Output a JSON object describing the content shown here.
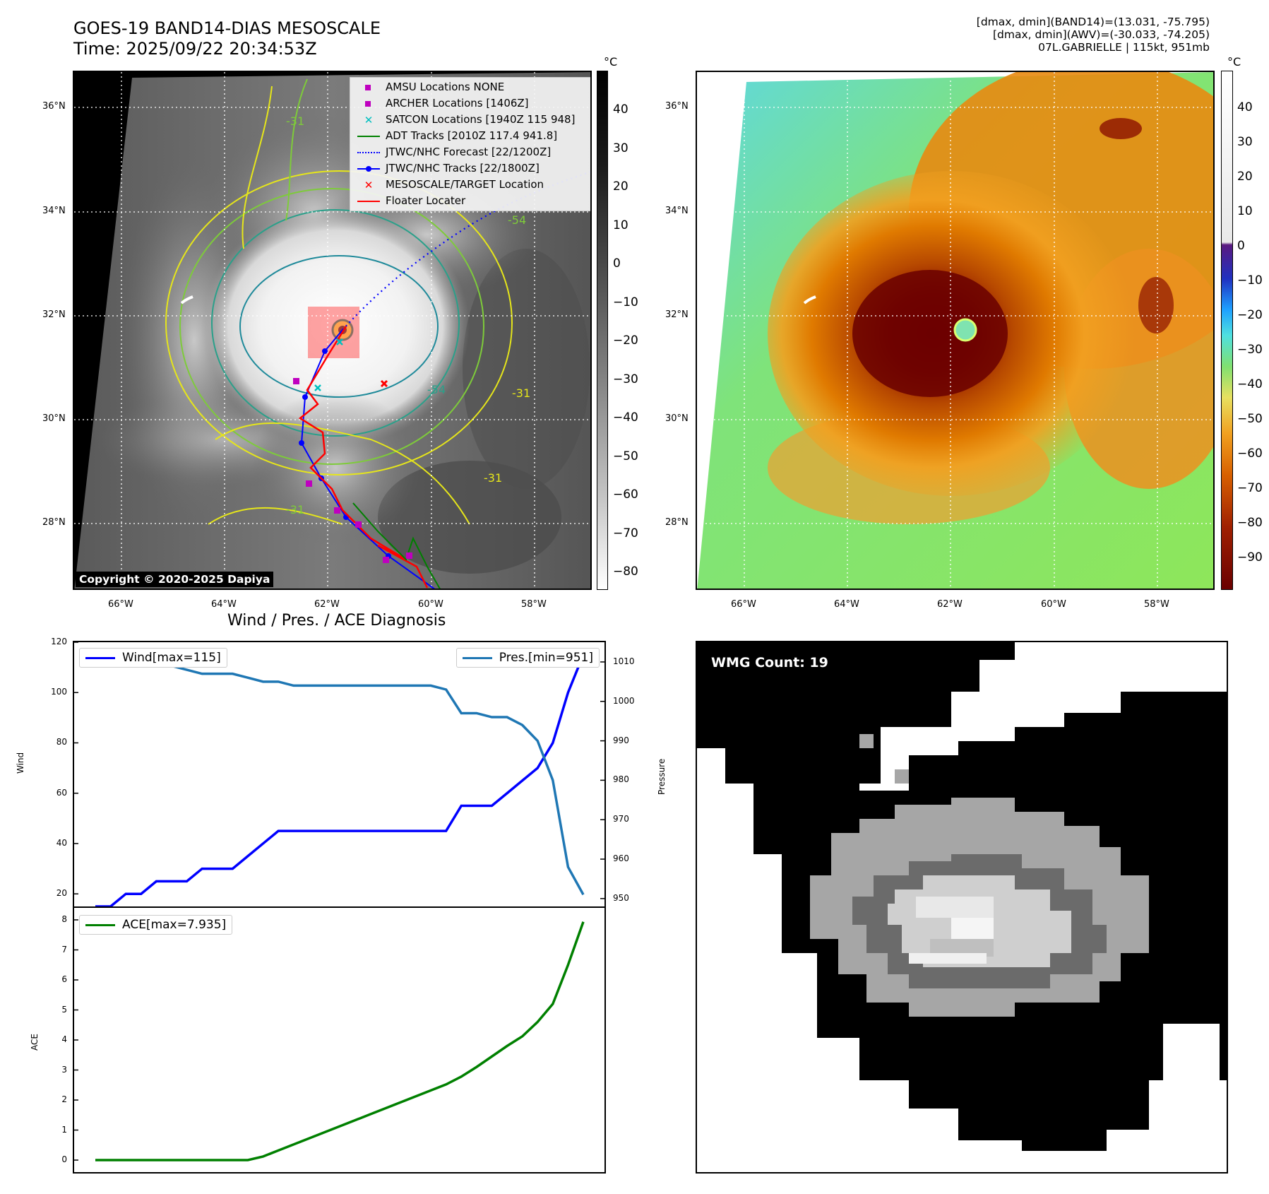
{
  "header": {
    "title_line1": "GOES-19 BAND14-DIAS MESOSCALE",
    "title_line2": "Time: 2025/09/22 20:34:53Z",
    "info_line1": "[dmax, dmin](BAND14)=(13.031, -75.795)",
    "info_line2": "[dmax, dmin](AWV)=(-30.033, -74.205)",
    "info_line3": "07L.GABRIELLE | 115kt, 951mb"
  },
  "map_axes": {
    "lat_labels": [
      "36°N",
      "34°N",
      "32°N",
      "30°N",
      "28°N"
    ],
    "lon_labels": [
      "66°W",
      "64°W",
      "62°W",
      "60°W",
      "58°W"
    ]
  },
  "left_map": {
    "unit": "°C",
    "colorbar_ticks": [
      "40",
      "30",
      "20",
      "10",
      "0",
      "−10",
      "−20",
      "−30",
      "−40",
      "−50",
      "−60",
      "−70",
      "−80"
    ],
    "contour_labels": [
      "-31",
      "-54",
      "-31",
      "-54",
      "-31",
      "-31"
    ],
    "legend": [
      {
        "label": "AMSU Locations NONE",
        "symbol": "square",
        "color": "#bf00bf"
      },
      {
        "label": "ARCHER Locations [1406Z]",
        "symbol": "square",
        "color": "#bf00bf"
      },
      {
        "label": "SATCON Locations [1940Z 115 948]",
        "symbol": "x",
        "color": "#00bfbf"
      },
      {
        "label": "ADT Tracks [2010Z 117.4 941.8]",
        "symbol": "line",
        "color": "#008000"
      },
      {
        "label": "JTWC/NHC Forecast [22/1200Z]",
        "symbol": "dotted",
        "color": "#0000ff"
      },
      {
        "label": "JTWC/NHC Tracks [22/1800Z]",
        "symbol": "line-dot",
        "color": "#0000ff"
      },
      {
        "label": "MESOSCALE/TARGET Location",
        "symbol": "x",
        "color": "#ff0000"
      },
      {
        "label": "Floater Locater",
        "symbol": "line",
        "color": "#ff0000"
      }
    ],
    "copyright": "Copyright © 2020-2025 Dapiya"
  },
  "right_map": {
    "unit": "°C",
    "colorbar_ticks": [
      "40",
      "30",
      "20",
      "10",
      "0",
      "−10",
      "−20",
      "−30",
      "−40",
      "−50",
      "−60",
      "−70",
      "−80",
      "−90"
    ]
  },
  "diagnosis": {
    "title": "Wind / Pres. / ACE Diagnosis",
    "wind_label": "Wind",
    "pressure_label": "Pressure",
    "ace_label": "ACE",
    "wind_legend": "Wind[max=115]",
    "pres_legend": "Pres.[min=951]",
    "ace_legend": "ACE[max=7.935]"
  },
  "wmg": {
    "label": "WMG Count: 19"
  },
  "chart_data": [
    {
      "type": "line",
      "title": "Wind / Pres. / ACE Diagnosis",
      "ylabel": "Wind",
      "ylim": [
        15,
        120
      ],
      "x": [
        0,
        1,
        2,
        3,
        4,
        5,
        6,
        7,
        8,
        9,
        10,
        11,
        12,
        13,
        14,
        15,
        16,
        17,
        18,
        19,
        20,
        21,
        22,
        23,
        24,
        25,
        26,
        27,
        28,
        29,
        30,
        31,
        32
      ],
      "series": [
        {
          "name": "Wind[max=115]",
          "color": "#0000ff",
          "values": [
            15,
            15,
            20,
            20,
            25,
            25,
            25,
            30,
            30,
            30,
            35,
            40,
            45,
            45,
            45,
            45,
            45,
            45,
            45,
            45,
            45,
            45,
            45,
            45,
            55,
            55,
            55,
            60,
            65,
            70,
            80,
            100,
            115
          ]
        }
      ]
    },
    {
      "type": "line",
      "ylabel": "Pressure",
      "ylim": [
        948,
        1015
      ],
      "x": [
        0,
        1,
        2,
        3,
        4,
        5,
        6,
        7,
        8,
        9,
        10,
        11,
        12,
        13,
        14,
        15,
        16,
        17,
        18,
        19,
        20,
        21,
        22,
        23,
        24,
        25,
        26,
        27,
        28,
        29,
        30,
        31,
        32
      ],
      "series": [
        {
          "name": "Pres.[min=951]",
          "color": "#1f77b4",
          "values": [
            1012,
            1012,
            1011,
            1010,
            1010,
            1009,
            1008,
            1007,
            1007,
            1007,
            1006,
            1005,
            1005,
            1004,
            1004,
            1004,
            1004,
            1004,
            1004,
            1004,
            1004,
            1004,
            1004,
            1003,
            997,
            997,
            996,
            996,
            994,
            990,
            980,
            958,
            951
          ]
        }
      ]
    },
    {
      "type": "line",
      "ylabel": "ACE",
      "ylim": [
        -0.4,
        8.4
      ],
      "x": [
        0,
        1,
        2,
        3,
        4,
        5,
        6,
        7,
        8,
        9,
        10,
        11,
        12,
        13,
        14,
        15,
        16,
        17,
        18,
        19,
        20,
        21,
        22,
        23,
        24,
        25,
        26,
        27,
        28,
        29,
        30,
        31,
        32
      ],
      "series": [
        {
          "name": "ACE[max=7.935]",
          "color": "#008000",
          "values": [
            0,
            0,
            0,
            0,
            0,
            0,
            0,
            0,
            0,
            0,
            0,
            0.12,
            0.32,
            0.52,
            0.72,
            0.92,
            1.12,
            1.32,
            1.52,
            1.72,
            1.92,
            2.12,
            2.32,
            2.52,
            2.78,
            3.1,
            3.45,
            3.8,
            4.12,
            4.6,
            5.2,
            6.5,
            7.935
          ]
        }
      ]
    }
  ]
}
